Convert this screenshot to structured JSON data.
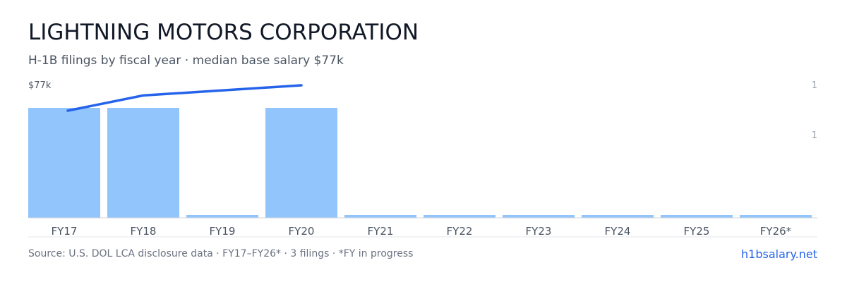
{
  "header": {
    "title": "LIGHTNING MOTORS CORPORATION",
    "subtitle": "H-1B filings by fiscal year · median base salary $77k"
  },
  "footer": {
    "source": "Source: U.S. DOL LCA disclosure data · FY17–FY26* · 3 filings · *FY in progress",
    "brand": "h1bsalary.net"
  },
  "colors": {
    "bar": "#93c5fd",
    "line": "#2563eb",
    "axis": "#d1d5db",
    "tick_text": "#4b5563",
    "muted_text": "#6b7280",
    "right_axis_text": "#9ca3af"
  },
  "chart_data": {
    "type": "bar",
    "categories": [
      "FY17",
      "FY18",
      "FY19",
      "FY20",
      "FY21",
      "FY22",
      "FY23",
      "FY24",
      "FY25",
      "FY26*"
    ],
    "series": [
      {
        "type": "bar",
        "axis": "right",
        "values": [
          1,
          1,
          0,
          1,
          0,
          0,
          0,
          0,
          0,
          0
        ]
      },
      {
        "type": "line",
        "axis": "left",
        "values": [
          72,
          75,
          null,
          77,
          null,
          null,
          null,
          null,
          null,
          null
        ]
      }
    ],
    "left_axis": {
      "tick_label": "$77k",
      "max": 77
    },
    "right_axis": {
      "tick_labels": [
        "1",
        "1"
      ]
    },
    "grid": false,
    "legend": "none"
  }
}
